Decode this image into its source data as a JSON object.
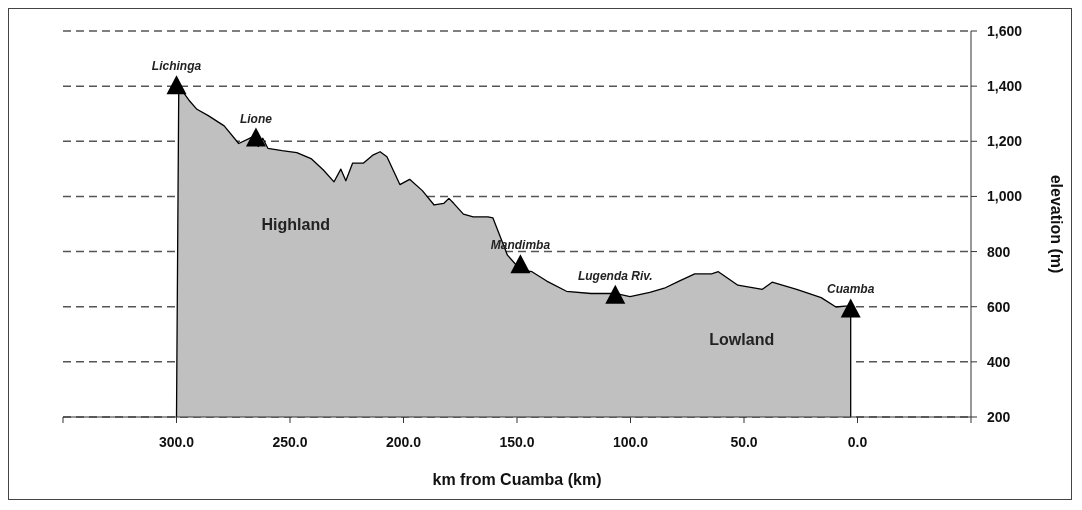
{
  "chart_data": {
    "type": "area",
    "xlabel": "km from Cuamba (km)",
    "ylabel": "elevation (m)",
    "xlim": [
      350,
      -50
    ],
    "xticks": [
      {
        "value": 350,
        "label": null
      },
      {
        "value": 300,
        "label": "300.0"
      },
      {
        "value": 250,
        "label": "250.0"
      },
      {
        "value": 200,
        "label": "200.0"
      },
      {
        "value": 150,
        "label": "150.0"
      },
      {
        "value": 100,
        "label": "100.0"
      },
      {
        "value": 50,
        "label": "50.0"
      },
      {
        "value": 0,
        "label": "0.0"
      },
      {
        "value": -50,
        "label": null
      }
    ],
    "ylim": [
      200,
      1600
    ],
    "yticks": [
      {
        "value": 200,
        "label": "200"
      },
      {
        "value": 400,
        "label": "400"
      },
      {
        "value": 600,
        "label": "600"
      },
      {
        "value": 800,
        "label": "800"
      },
      {
        "value": 1000,
        "label": "1,000"
      },
      {
        "value": 1200,
        "label": "1,200"
      },
      {
        "value": 1400,
        "label": "1,400"
      },
      {
        "value": 1600,
        "label": "1,600"
      }
    ],
    "grid": "y",
    "line_style": "dashed",
    "series": [
      {
        "color": "#c0c0c0",
        "x": [
          300,
          299,
          294.5,
          291,
          286,
          279,
          272.6,
          266,
          264,
          262,
          259.7,
          253.5,
          247,
          240.5,
          235.3,
          230.6,
          227.6,
          225.4,
          222.4,
          217.6,
          213.3,
          210.3,
          207.3,
          201.6,
          197.3,
          191.7,
          186.5,
          182.2,
          180,
          177.9,
          173.6,
          169.3,
          162.8,
          160.6,
          154.2,
          148.5,
          143.4,
          136.9,
          128.2,
          117.4,
          106.7,
          100.2,
          91.5,
          85.1,
          78.6,
          71.7,
          64.3,
          61.3,
          52.7,
          41.9,
          37.6,
          26.8,
          16,
          9.5,
          4.3,
          3,
          3
        ],
        "values": [
          200,
          1400,
          1349,
          1316,
          1293,
          1256,
          1192,
          1218,
          1181,
          1211,
          1174,
          1166,
          1159,
          1136,
          1096,
          1053,
          1099,
          1057,
          1121,
          1121,
          1151,
          1162,
          1144,
          1043,
          1062,
          1021,
          969,
          975,
          993,
          975,
          936,
          926,
          926,
          922,
          787,
          734,
          727,
          693,
          656,
          648,
          648,
          637,
          652,
          667,
          693,
          719,
          719,
          727,
          678,
          663,
          689,
          663,
          633,
          599,
          603,
          611,
          200
        ]
      },
      {
        "type": "scatter",
        "color": "#000000",
        "marker": "triangle",
        "x": [
          300,
          265,
          148.5,
          106.7,
          3
        ],
        "values": [
          1400,
          1210,
          750,
          640,
          590
        ]
      }
    ],
    "annotations": [
      {
        "text": "Lichinga",
        "x": 300,
        "y": 1400
      },
      {
        "text": "Lione",
        "x": 265,
        "y": 1210
      },
      {
        "text": "Mandimba",
        "x": 148.5,
        "y": 750
      },
      {
        "text": "Lugenda Riv.",
        "x": 106.7,
        "y": 640
      },
      {
        "text": "Cuamba",
        "x": 3,
        "y": 590
      },
      "Highland",
      "Lowland"
    ]
  }
}
